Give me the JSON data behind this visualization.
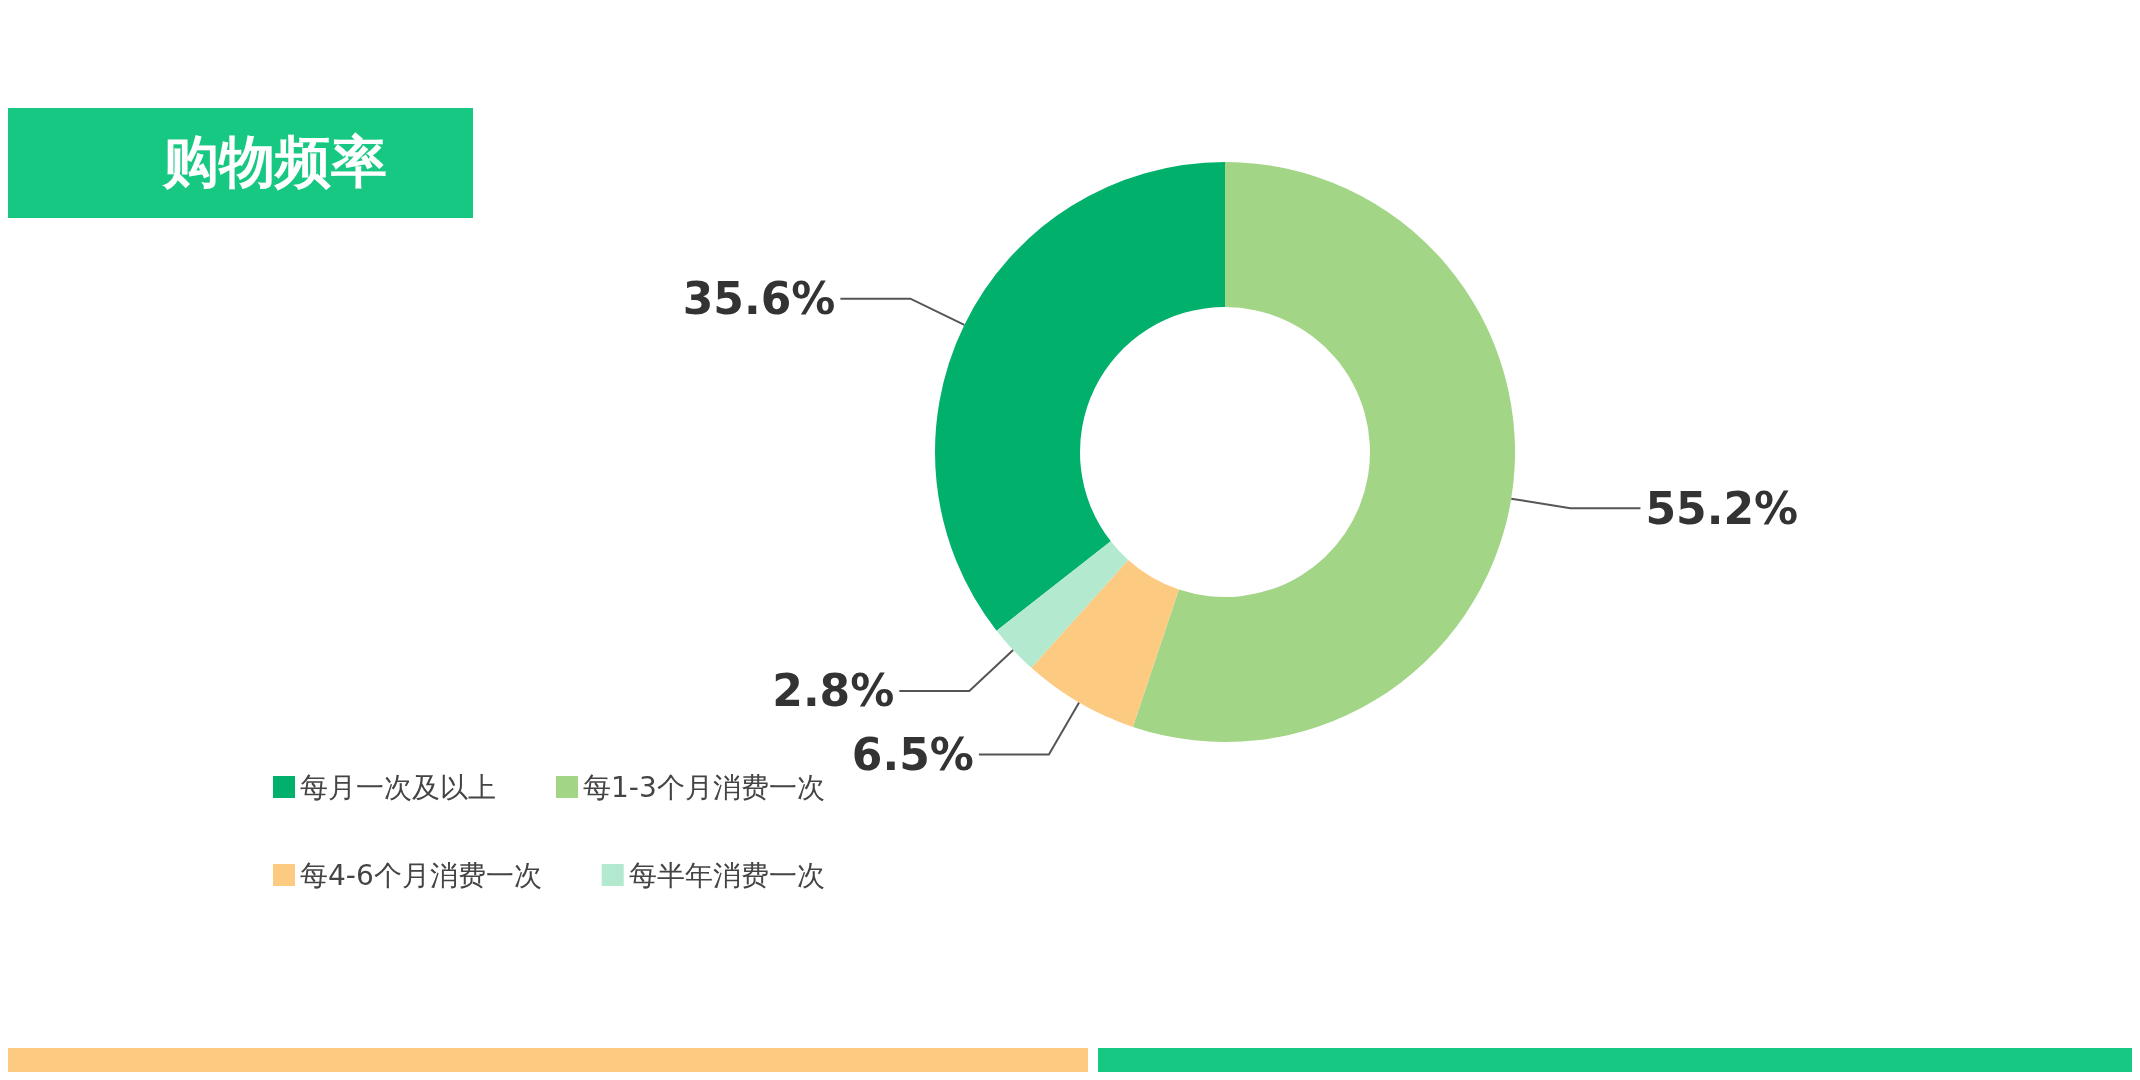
{
  "chart_data": {
    "type": "donut",
    "title": "购物频率",
    "categories": [
      "每月一次及以上",
      "每1-3个月消费一次",
      "每4-6个月消费一次",
      "每半年消费一次"
    ],
    "values": [
      35.6,
      55.2,
      6.5,
      2.8
    ],
    "colors": [
      "#00b06b",
      "#a2d586",
      "#fdca82",
      "#b2e9cf"
    ],
    "value_labels": [
      "35.6%",
      "55.2%",
      "6.5%",
      "2.8%"
    ],
    "legend": "bottom left"
  }
}
